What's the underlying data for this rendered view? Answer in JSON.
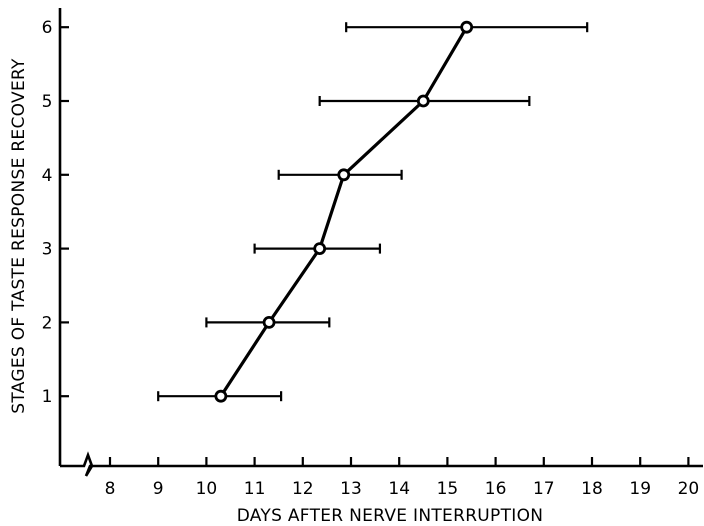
{
  "chart_data": {
    "type": "scatter",
    "xlabel": "DAYS AFTER NERVE INTERRUPTION",
    "ylabel": "STAGES OF TASTE RESPONSE RECOVERY",
    "xlim": [
      7.5,
      20.2
    ],
    "ylim": [
      0,
      6.35
    ],
    "x_axis_break": true,
    "x_ticks": [
      "8",
      "9",
      "10",
      "11",
      "12",
      "13",
      "14",
      "15",
      "16",
      "17",
      "18",
      "19",
      "20"
    ],
    "y_ticks": [
      "1",
      "2",
      "3",
      "4",
      "5",
      "6"
    ],
    "grid": false,
    "series": [
      {
        "points": [
          {
            "x": 10.3,
            "y": 1,
            "x_low": 9.0,
            "x_high": 11.55
          },
          {
            "x": 11.3,
            "y": 2,
            "x_low": 10.0,
            "x_high": 12.55
          },
          {
            "x": 12.35,
            "y": 3,
            "x_low": 11.0,
            "x_high": 13.6
          },
          {
            "x": 12.85,
            "y": 4,
            "x_low": 11.5,
            "x_high": 14.05
          },
          {
            "x": 14.5,
            "y": 5,
            "x_low": 12.35,
            "x_high": 16.7
          },
          {
            "x": 15.4,
            "y": 6,
            "x_low": 12.9,
            "x_high": 17.9
          }
        ]
      }
    ]
  }
}
